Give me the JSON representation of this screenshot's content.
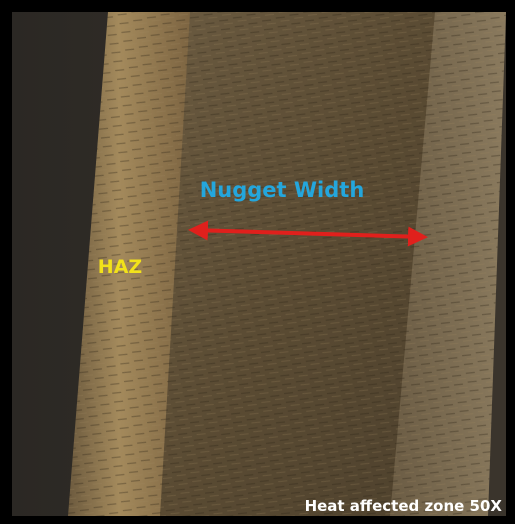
{
  "labels": {
    "nugget_width": "Nugget Width",
    "haz": "HAZ",
    "caption": "Heat affected zone 50X"
  }
}
